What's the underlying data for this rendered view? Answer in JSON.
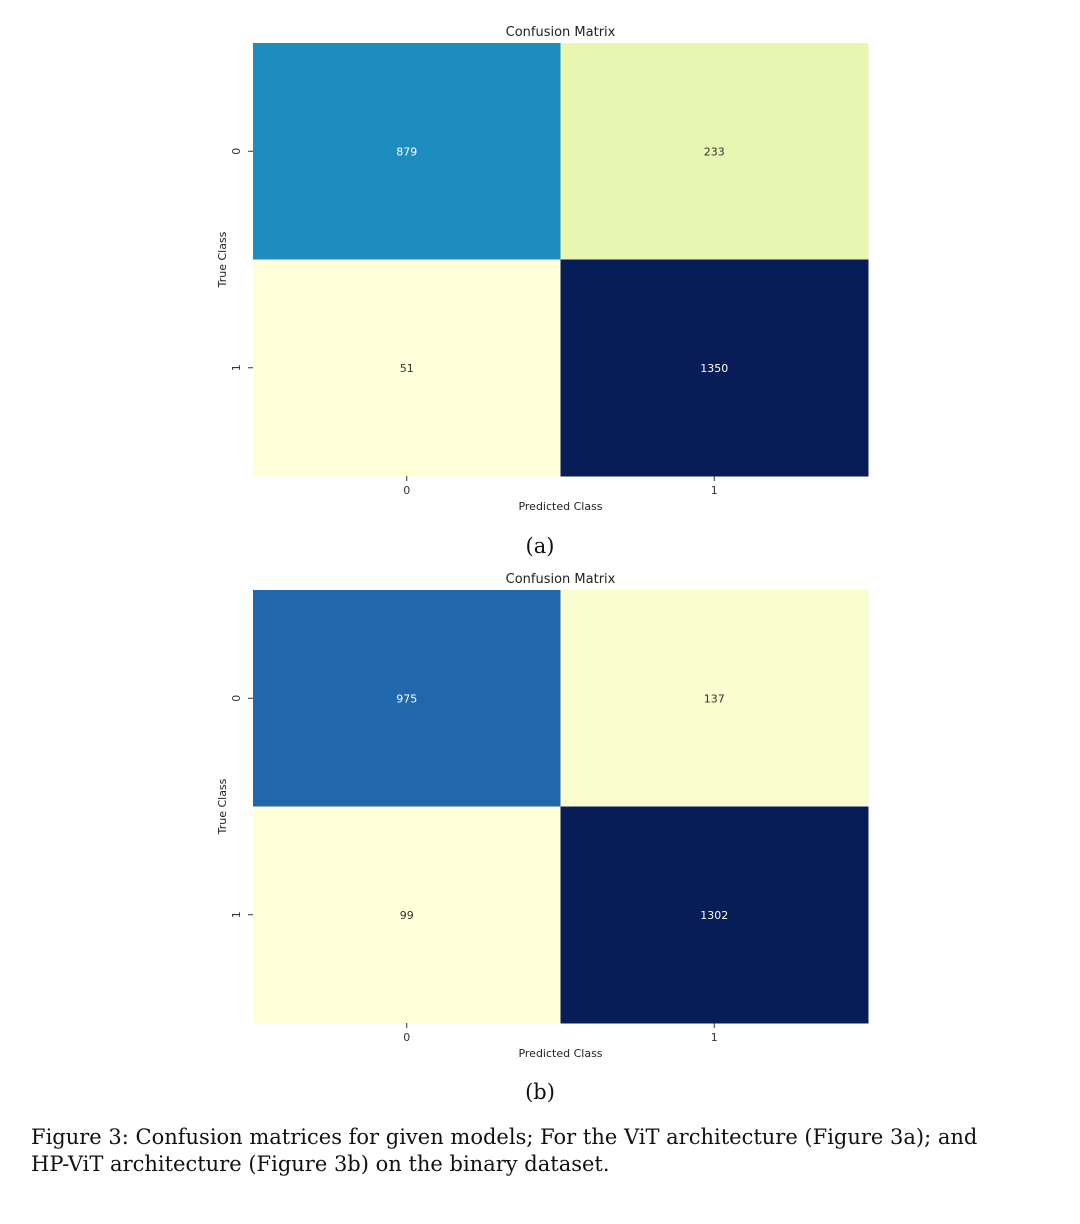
{
  "chart_data": [
    {
      "type": "heatmap",
      "title": "Confusion Matrix",
      "xlabel": "Predicted Class",
      "ylabel": "True Class",
      "x_categories": [
        "0",
        "1"
      ],
      "y_categories": [
        "0",
        "1"
      ],
      "values": [
        [
          879,
          233
        ],
        [
          51,
          1350
        ]
      ],
      "colormap": "YlGnBu",
      "colorbar": false,
      "panel_label": "(a)"
    },
    {
      "type": "heatmap",
      "title": "Confusion Matrix",
      "xlabel": "Predicted Class",
      "ylabel": "True Class",
      "x_categories": [
        "0",
        "1"
      ],
      "y_categories": [
        "0",
        "1"
      ],
      "values": [
        [
          975,
          137
        ],
        [
          99,
          1302
        ]
      ],
      "colormap": "YlGnBu",
      "colorbar": false,
      "panel_label": "(b)"
    }
  ],
  "caption": {
    "line1": "Figure 3: Confusion matrices for given models; For the ViT architecture (Figure 3a); and",
    "line2": "HP-ViT architecture (Figure 3b) on the binary dataset."
  }
}
